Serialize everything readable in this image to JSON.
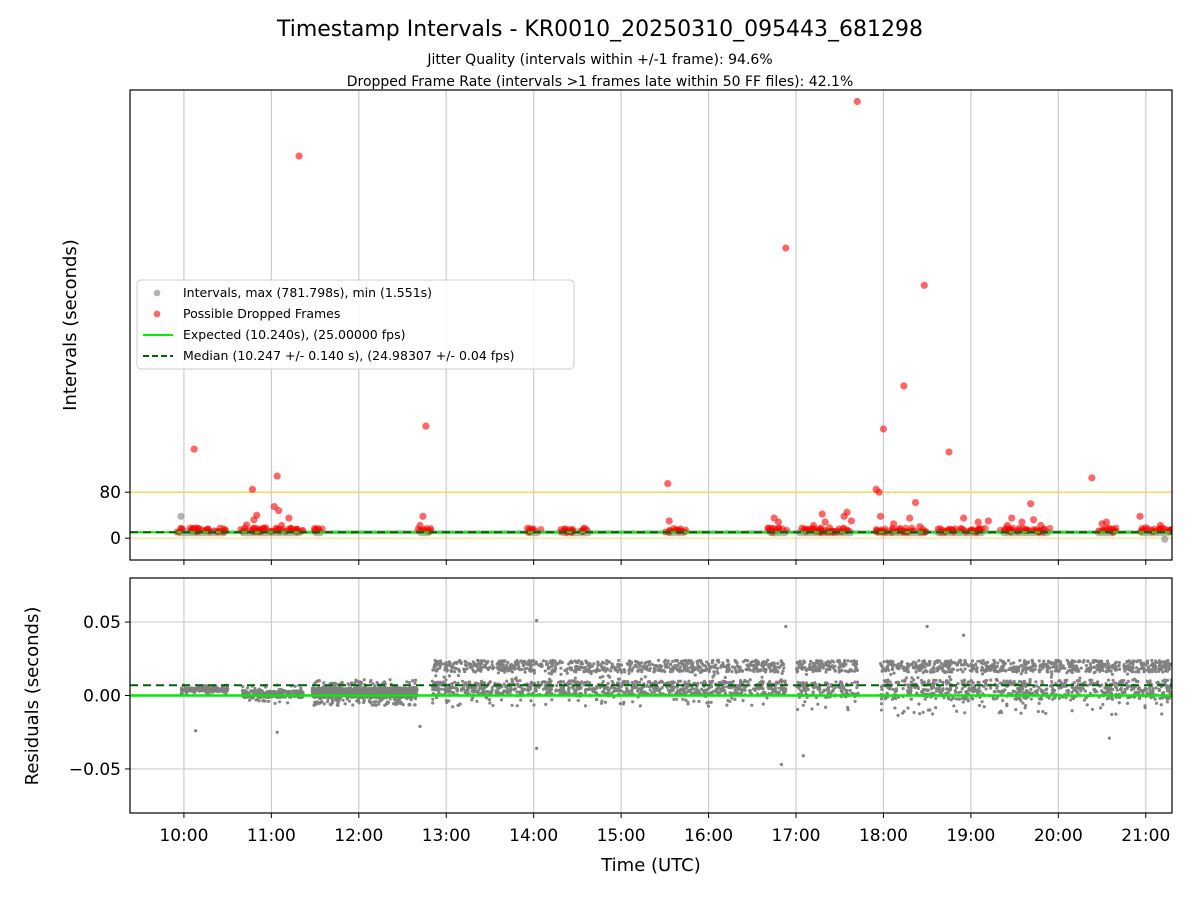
{
  "title": "Timestamp Intervals - KR0010_20250310_095443_681298",
  "subtitle_1": "Jitter Quality (intervals within +/-1 frame): 94.6%",
  "subtitle_2": "Dropped Frame Rate (intervals >1 frames late within 50 FF files): 42.1%",
  "colors": {
    "intervals": "#808080",
    "dropped": "#ff0000",
    "expected": "#00ee00",
    "median": "#006400",
    "threshold": "#ffd24d",
    "grid": "#cccccc"
  },
  "chart_data": [
    {
      "type": "scatter",
      "ylabel": "Intervals (seconds)",
      "xlim": [
        "09:23",
        "21:18"
      ],
      "ylim": [
        -38,
        780
      ],
      "yticks": [
        "0",
        "80"
      ],
      "grid": "x",
      "legend_position": "center-left",
      "legend": [
        {
          "label": "Intervals, max (781.798s), min (1.551s)",
          "marker": "gray-dot"
        },
        {
          "label": "Possible Dropped Frames",
          "marker": "red-dot"
        },
        {
          "label": "Expected (10.240s), (25.00000 fps)",
          "marker": "green-line"
        },
        {
          "label": "Median (10.247 +/- 0.140 s), (24.98307 +/- 0.04 fps)",
          "marker": "dashed-green-line"
        }
      ],
      "reference_lines": {
        "expected": 10.24,
        "median": 10.247,
        "threshold": 80
      },
      "interval_blocks": [
        [
          "09:55",
          "10:30"
        ],
        [
          "10:38",
          "11:22"
        ],
        [
          "11:28",
          "11:36"
        ],
        [
          "12:40",
          "12:50"
        ],
        [
          "13:55",
          "14:05"
        ],
        [
          "14:18",
          "14:40"
        ],
        [
          "15:30",
          "15:45"
        ],
        [
          "16:40",
          "16:55"
        ],
        [
          "17:00",
          "17:40"
        ],
        [
          "17:55",
          "18:30"
        ],
        [
          "18:35",
          "19:10"
        ],
        [
          "19:20",
          "19:55"
        ],
        [
          "20:25",
          "20:40"
        ],
        [
          "20:55",
          "21:18"
        ]
      ],
      "intervals_extra": [
        [
          "09:58",
          38
        ],
        [
          "10:05",
          12
        ],
        [
          "21:13",
          -2
        ]
      ],
      "dropped_frames": [
        [
          "10:07",
          155
        ],
        [
          "10:08",
          18
        ],
        [
          "10:47",
          85
        ],
        [
          "10:48",
          32
        ],
        [
          "10:50",
          40
        ],
        [
          "10:43",
          23
        ],
        [
          "11:02",
          55
        ],
        [
          "11:04",
          108
        ],
        [
          "11:05",
          48
        ],
        [
          "11:07",
          22
        ],
        [
          "11:12",
          35
        ],
        [
          "11:19",
          665
        ],
        [
          "12:42",
          22
        ],
        [
          "12:44",
          38
        ],
        [
          "12:46",
          195
        ],
        [
          "15:32",
          95
        ],
        [
          "15:33",
          30
        ],
        [
          "16:45",
          35
        ],
        [
          "16:48",
          28
        ],
        [
          "16:53",
          505
        ],
        [
          "17:12",
          22
        ],
        [
          "17:18",
          42
        ],
        [
          "17:20",
          28
        ],
        [
          "17:23",
          18
        ],
        [
          "17:33",
          38
        ],
        [
          "17:35",
          45
        ],
        [
          "17:38",
          30
        ],
        [
          "17:42",
          760
        ],
        [
          "17:55",
          85
        ],
        [
          "17:57",
          80
        ],
        [
          "17:58",
          38
        ],
        [
          "18:00",
          190
        ],
        [
          "18:07",
          25
        ],
        [
          "18:14",
          265
        ],
        [
          "18:18",
          35
        ],
        [
          "18:22",
          62
        ],
        [
          "18:25",
          20
        ],
        [
          "18:28",
          440
        ],
        [
          "18:45",
          150
        ],
        [
          "18:55",
          35
        ],
        [
          "19:05",
          28
        ],
        [
          "19:12",
          30
        ],
        [
          "19:25",
          22
        ],
        [
          "19:28",
          35
        ],
        [
          "19:35",
          28
        ],
        [
          "19:41",
          60
        ],
        [
          "19:43",
          32
        ],
        [
          "19:48",
          22
        ],
        [
          "20:23",
          105
        ],
        [
          "20:30",
          25
        ],
        [
          "20:33",
          28
        ],
        [
          "20:56",
          38
        ],
        [
          "21:00",
          18
        ],
        [
          "21:10",
          22
        ]
      ]
    },
    {
      "type": "scatter",
      "ylabel": "Residuals (seconds)",
      "xlabel": "Time (UTC)",
      "xlim": [
        "09:23",
        "21:18"
      ],
      "ylim": [
        -0.08,
        0.08
      ],
      "yticks": [
        "−0.05",
        "0.00",
        "0.05"
      ],
      "xticks": [
        "10:00",
        "11:00",
        "12:00",
        "13:00",
        "14:00",
        "15:00",
        "16:00",
        "17:00",
        "18:00",
        "19:00",
        "20:00",
        "21:00"
      ],
      "grid": "both",
      "reference_lines": {
        "expected": 0.0,
        "median": 0.007
      },
      "residual_segments": [
        {
          "start": "09:58",
          "end": "10:30",
          "center": 0.008,
          "spread": 0.004,
          "density": 2.0
        },
        {
          "start": "10:40",
          "end": "11:22",
          "center": 0.005,
          "spread": 0.008,
          "density": 2.0
        },
        {
          "start": "11:28",
          "end": "12:40",
          "center": 0.006,
          "spread": 0.011,
          "density": 5.0
        },
        {
          "start": "12:50",
          "end": "16:53",
          "center": 0.009,
          "spread": 0.016,
          "density": 2.2
        },
        {
          "start": "17:00",
          "end": "17:43",
          "center": 0.008,
          "spread": 0.018,
          "density": 2.0
        },
        {
          "start": "17:58",
          "end": "21:18",
          "center": 0.008,
          "spread": 0.022,
          "density": 2.2
        }
      ],
      "residual_outliers": [
        [
          "10:08",
          -0.024
        ],
        [
          "11:04",
          -0.025
        ],
        [
          "12:42",
          -0.021
        ],
        [
          "14:02",
          0.051
        ],
        [
          "14:02",
          -0.036
        ],
        [
          "16:50",
          -0.047
        ],
        [
          "16:53",
          0.047
        ],
        [
          "17:05",
          -0.041
        ],
        [
          "18:30",
          0.047
        ],
        [
          "18:55",
          0.041
        ],
        [
          "20:35",
          -0.029
        ]
      ]
    }
  ]
}
